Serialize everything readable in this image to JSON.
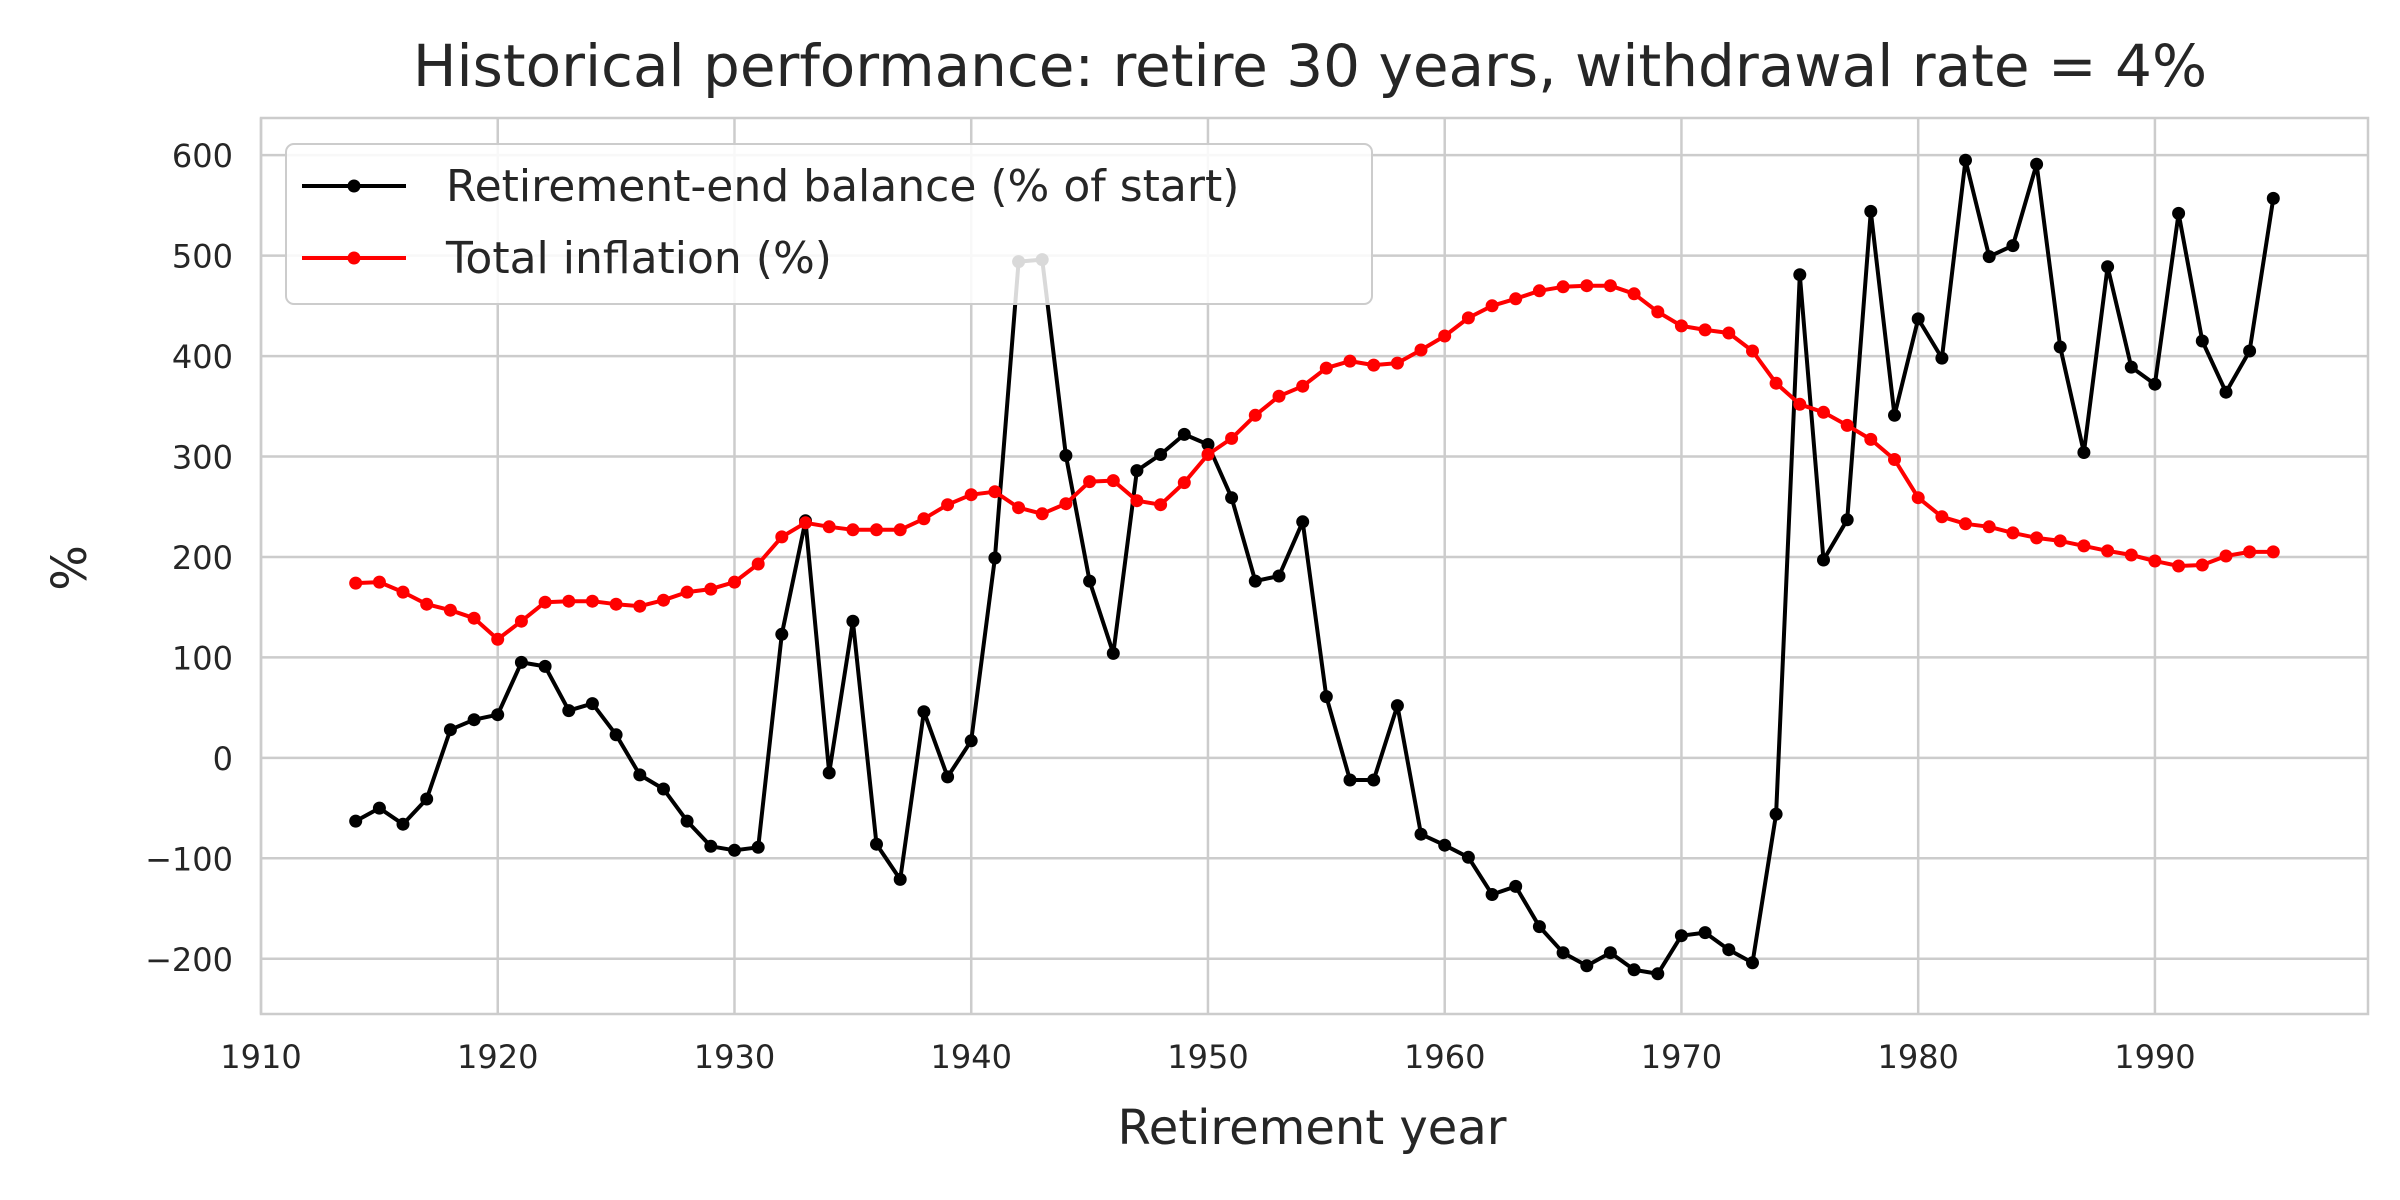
{
  "chart_data": {
    "type": "line",
    "title": "Historical performance: retire 30 years, withdrawal rate = 4%",
    "xlabel": "Retirement year",
    "ylabel": "%",
    "xlim": [
      1910,
      1999
    ],
    "ylim": [
      -255,
      637
    ],
    "xticks": [
      1910,
      1920,
      1930,
      1940,
      1950,
      1960,
      1970,
      1980,
      1990
    ],
    "yticks": [
      -200,
      -100,
      0,
      100,
      200,
      300,
      400,
      500,
      600
    ],
    "grid": true,
    "legend_position": "upper-left",
    "x": [
      1914,
      1915,
      1916,
      1917,
      1918,
      1919,
      1920,
      1921,
      1922,
      1923,
      1924,
      1925,
      1926,
      1927,
      1928,
      1929,
      1930,
      1931,
      1932,
      1933,
      1934,
      1935,
      1936,
      1937,
      1938,
      1939,
      1940,
      1941,
      1942,
      1943,
      1944,
      1945,
      1946,
      1947,
      1948,
      1949,
      1950,
      1951,
      1952,
      1953,
      1954,
      1955,
      1956,
      1957,
      1958,
      1959,
      1960,
      1961,
      1962,
      1963,
      1964,
      1965,
      1966,
      1967,
      1968,
      1969,
      1970,
      1971,
      1972,
      1973,
      1974,
      1975,
      1976,
      1977,
      1978,
      1979,
      1980,
      1981,
      1982,
      1983,
      1984,
      1985,
      1986,
      1987,
      1988,
      1989,
      1990,
      1991,
      1992,
      1993,
      1994,
      1995
    ],
    "series": [
      {
        "name": "Retirement-end balance (% of start)",
        "color": "#000000",
        "values": [
          -63,
          -50,
          -66,
          -41,
          28,
          38,
          43,
          95,
          91,
          47,
          54,
          23,
          -17,
          -31,
          -63,
          -88,
          -92,
          -89,
          123,
          236,
          -15,
          136,
          -86,
          -121,
          46,
          -19,
          17,
          199,
          494,
          496,
          301,
          176,
          104,
          286,
          302,
          322,
          312,
          259,
          176,
          181,
          235,
          61,
          -22,
          -22,
          52,
          -76,
          -87,
          -99,
          -136,
          -128,
          -168,
          -194,
          -207,
          -194,
          -211,
          -215,
          -177,
          -174,
          -191,
          -204,
          -56,
          481,
          197,
          237,
          544,
          341,
          437,
          398,
          595,
          499,
          510,
          591,
          409,
          304,
          489,
          389,
          372,
          542,
          415,
          364,
          405,
          557
        ]
      },
      {
        "name": "Total inflation (%)",
        "color": "#ff0000",
        "values": [
          174,
          175,
          165,
          153,
          147,
          139,
          118,
          136,
          155,
          156,
          156,
          153,
          151,
          157,
          165,
          168,
          175,
          193,
          220,
          234,
          230,
          227,
          227,
          227,
          238,
          252,
          262,
          265,
          249,
          243,
          253,
          275,
          276,
          256,
          252,
          274,
          302,
          318,
          341,
          360,
          370,
          388,
          395,
          391,
          393,
          406,
          420,
          438,
          450,
          457,
          465,
          469,
          470,
          470,
          462,
          444,
          430,
          426,
          423,
          405,
          373,
          352,
          344,
          331,
          317,
          297,
          259,
          240,
          233,
          230,
          224,
          219,
          216,
          211,
          206,
          202,
          196,
          191,
          192,
          201,
          205,
          205
        ]
      }
    ]
  }
}
